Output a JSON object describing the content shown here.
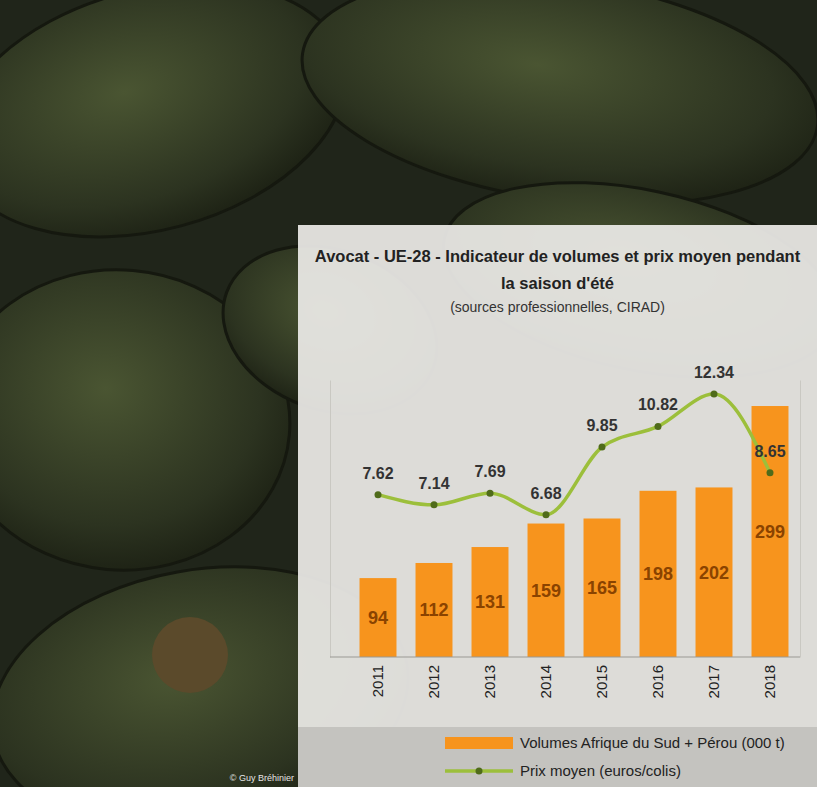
{
  "chart_data": {
    "type": "bar",
    "title": "Avocat - UE-28 - Indicateur de volumes et prix moyen pendant la saison d'été",
    "subtitle": "(sources professionnelles, CIRAD)",
    "annotations": [
      "© Guy Bréhinier"
    ],
    "categories": [
      "2011",
      "2012",
      "2013",
      "2014",
      "2015",
      "2016",
      "2017",
      "2018"
    ],
    "series": [
      {
        "name": "Volumes Afrique du Sud + Pérou (000 t)",
        "type": "bar",
        "color": "#f7941d",
        "values": [
          94,
          112,
          131,
          159,
          165,
          198,
          202,
          299
        ]
      },
      {
        "name": "Prix moyen (euros/colis)",
        "type": "line",
        "axis": "y2",
        "color": "#9cbf3b",
        "marker": "circle",
        "line_style": "solid",
        "values": [
          7.62,
          7.14,
          7.69,
          6.68,
          9.85,
          10.82,
          12.34,
          8.65
        ]
      }
    ],
    "ylim": [
      0,
      330
    ],
    "yticks": [],
    "y2lim": [
      0,
      13
    ],
    "y2ticks": [],
    "data_labels": true,
    "tick_labels": "x",
    "legend": "bottom",
    "grid": false
  }
}
